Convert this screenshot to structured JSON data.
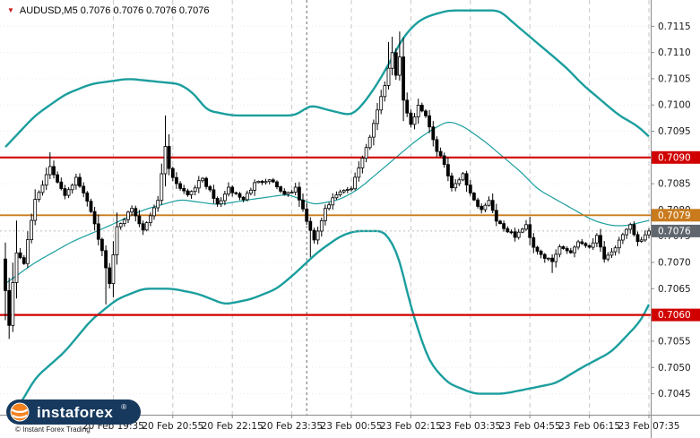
{
  "header": {
    "marker": "▼",
    "title": "AUDUSD,M5 0.7076 0.7076 0.7076 0.7076"
  },
  "watermark": {
    "brand": "instaforex",
    "reg": "®",
    "copyright": "© Instant Forex Trading"
  },
  "chart_data": {
    "type": "candlestick",
    "symbol": "AUDUSD",
    "timeframe": "M5",
    "indicators": [
      "Bollinger Bands"
    ],
    "ylim": [
      0.7041,
      0.712
    ],
    "num_candles": 174,
    "bull_color": "#ffffff",
    "bear_color": "#000000",
    "band_color": "#1b9e9e",
    "session_break_index": 81,
    "y_ticks": [
      "0.7115",
      "0.7110",
      "0.7105",
      "0.7100",
      "0.7095",
      "0.7090",
      "0.7085",
      "0.7080",
      "0.7075",
      "0.7070",
      "0.7065",
      "0.7060",
      "0.7055",
      "0.7050",
      "0.7045"
    ],
    "x_ticks": [
      {
        "i": 29,
        "label": "20 Feb 19:35"
      },
      {
        "i": 45,
        "label": "20 Feb 20:55"
      },
      {
        "i": 61,
        "label": "20 Feb 22:15"
      },
      {
        "i": 77,
        "label": "20 Feb 23:35"
      },
      {
        "i": 93,
        "label": "23 Feb 00:55"
      },
      {
        "i": 109,
        "label": "23 Feb 02:15"
      },
      {
        "i": 125,
        "label": "23 Feb 03:35"
      },
      {
        "i": 141,
        "label": "23 Feb 04:55"
      },
      {
        "i": 157,
        "label": "23 Feb 06:15"
      },
      {
        "i": 173,
        "label": "23 Feb 07:35"
      }
    ],
    "h_lines": [
      {
        "price": 0.709,
        "label": "0.7090",
        "color": "#d10000",
        "width": 2.2
      },
      {
        "price": 0.7079,
        "label": "0.7079",
        "color": "#c97a1c",
        "width": 1.8
      },
      {
        "price": 0.706,
        "label": "0.7060",
        "color": "#d10000",
        "width": 2.2
      }
    ],
    "current": {
      "price": 0.7076,
      "label": "0.7076",
      "badge_color": "#60666e"
    },
    "close_anchors": [
      [
        0,
        0.7065
      ],
      [
        1,
        0.7058
      ],
      [
        2,
        0.7066
      ],
      [
        3,
        0.7072
      ],
      [
        5,
        0.707
      ],
      [
        8,
        0.7082
      ],
      [
        12,
        0.7088
      ],
      [
        16,
        0.7083
      ],
      [
        19,
        0.7086
      ],
      [
        23,
        0.708
      ],
      [
        26,
        0.7072
      ],
      [
        28,
        0.7066
      ],
      [
        30,
        0.7077
      ],
      [
        34,
        0.708
      ],
      [
        37,
        0.7076
      ],
      [
        41,
        0.7082
      ],
      [
        43,
        0.7092
      ],
      [
        44,
        0.7088
      ],
      [
        46,
        0.7085
      ],
      [
        49,
        0.7083
      ],
      [
        53,
        0.7086
      ],
      [
        57,
        0.7081
      ],
      [
        60,
        0.7084
      ],
      [
        64,
        0.7082
      ],
      [
        67,
        0.7085
      ],
      [
        71,
        0.7086
      ],
      [
        75,
        0.7083
      ],
      [
        78,
        0.7084
      ],
      [
        81,
        0.7078
      ],
      [
        83,
        0.7074
      ],
      [
        86,
        0.708
      ],
      [
        89,
        0.7083
      ],
      [
        93,
        0.7084
      ],
      [
        95,
        0.7088
      ],
      [
        98,
        0.7094
      ],
      [
        100,
        0.7099
      ],
      [
        102,
        0.7104
      ],
      [
        104,
        0.711
      ],
      [
        105,
        0.7106
      ],
      [
        106,
        0.7109
      ],
      [
        107,
        0.7101
      ],
      [
        109,
        0.7096
      ],
      [
        111,
        0.71
      ],
      [
        113,
        0.7098
      ],
      [
        114,
        0.7096
      ],
      [
        116,
        0.7091
      ],
      [
        118,
        0.7089
      ],
      [
        120,
        0.7084
      ],
      [
        123,
        0.7087
      ],
      [
        125,
        0.7083
      ],
      [
        128,
        0.708
      ],
      [
        130,
        0.7082
      ],
      [
        132,
        0.7078
      ],
      [
        135,
        0.7076
      ],
      [
        137,
        0.7075
      ],
      [
        140,
        0.7077
      ],
      [
        142,
        0.7073
      ],
      [
        145,
        0.7071
      ],
      [
        147,
        0.707
      ],
      [
        149,
        0.7073
      ],
      [
        152,
        0.7072
      ],
      [
        154,
        0.7074
      ],
      [
        157,
        0.7073
      ],
      [
        159,
        0.7075
      ],
      [
        161,
        0.7071
      ],
      [
        163,
        0.7072
      ],
      [
        166,
        0.7075
      ],
      [
        168,
        0.7077
      ],
      [
        170,
        0.7074
      ],
      [
        172,
        0.7075
      ],
      [
        173,
        0.7076
      ]
    ],
    "extremes": [
      {
        "i": 0,
        "low": 0.7059
      },
      {
        "i": 1,
        "low": 0.7056
      },
      {
        "i": 3,
        "high": 0.7078
      },
      {
        "i": 12,
        "high": 0.7091
      },
      {
        "i": 27,
        "low": 0.7062
      },
      {
        "i": 43,
        "high": 0.7098
      },
      {
        "i": 82,
        "low": 0.7071
      },
      {
        "i": 103,
        "high": 0.7112
      },
      {
        "i": 104,
        "high": 0.7113
      },
      {
        "i": 106,
        "high": 0.7114
      },
      {
        "i": 147,
        "low": 0.7068
      }
    ],
    "bollinger": {
      "upper": [
        [
          0,
          0.7092
        ],
        [
          8,
          0.7098
        ],
        [
          16,
          0.7102
        ],
        [
          23,
          0.7104
        ],
        [
          33,
          0.7105
        ],
        [
          47,
          0.7104
        ],
        [
          51,
          0.7102
        ],
        [
          54,
          0.7099
        ],
        [
          61,
          0.7098
        ],
        [
          71,
          0.7098
        ],
        [
          78,
          0.7098
        ],
        [
          82,
          0.71
        ],
        [
          87,
          0.7099
        ],
        [
          93,
          0.7098
        ],
        [
          96,
          0.71
        ],
        [
          100,
          0.7104
        ],
        [
          104,
          0.7109
        ],
        [
          107,
          0.7113
        ],
        [
          111,
          0.7116
        ],
        [
          114,
          0.7117
        ],
        [
          119,
          0.7118
        ],
        [
          133,
          0.7118
        ],
        [
          136,
          0.7116
        ],
        [
          141,
          0.7113
        ],
        [
          146,
          0.711
        ],
        [
          151,
          0.7107
        ],
        [
          155,
          0.7104
        ],
        [
          160,
          0.7101
        ],
        [
          165,
          0.7098
        ],
        [
          170,
          0.7096
        ],
        [
          173,
          0.7094
        ]
      ],
      "middle": [
        [
          0,
          0.7066
        ],
        [
          8,
          0.707
        ],
        [
          18,
          0.7074
        ],
        [
          28,
          0.7077
        ],
        [
          37,
          0.708
        ],
        [
          47,
          0.7082
        ],
        [
          57,
          0.7081
        ],
        [
          66,
          0.7082
        ],
        [
          76,
          0.7083
        ],
        [
          83,
          0.7081
        ],
        [
          90,
          0.7082
        ],
        [
          95,
          0.7084
        ],
        [
          100,
          0.7087
        ],
        [
          105,
          0.709
        ],
        [
          110,
          0.7093
        ],
        [
          114,
          0.7095
        ],
        [
          119,
          0.7097
        ],
        [
          123,
          0.7096
        ],
        [
          129,
          0.7093
        ],
        [
          134,
          0.709
        ],
        [
          139,
          0.7087
        ],
        [
          143,
          0.7084
        ],
        [
          148,
          0.7082
        ],
        [
          153,
          0.708
        ],
        [
          158,
          0.7078
        ],
        [
          163,
          0.7077
        ],
        [
          167,
          0.7077
        ],
        [
          173,
          0.7078
        ]
      ],
      "lower": [
        [
          0,
          0.704
        ],
        [
          4,
          0.7043
        ],
        [
          8,
          0.7048
        ],
        [
          16,
          0.7053
        ],
        [
          23,
          0.7059
        ],
        [
          30,
          0.7063
        ],
        [
          37,
          0.7065
        ],
        [
          45,
          0.7065
        ],
        [
          52,
          0.7064
        ],
        [
          59,
          0.7062
        ],
        [
          66,
          0.7063
        ],
        [
          73,
          0.7065
        ],
        [
          78,
          0.7068
        ],
        [
          84,
          0.7072
        ],
        [
          90,
          0.7075
        ],
        [
          94,
          0.7076
        ],
        [
          102,
          0.7076
        ],
        [
          106,
          0.7071
        ],
        [
          108,
          0.7064
        ],
        [
          111,
          0.7057
        ],
        [
          114,
          0.7051
        ],
        [
          119,
          0.7047
        ],
        [
          126,
          0.7045
        ],
        [
          134,
          0.7045
        ],
        [
          141,
          0.7046
        ],
        [
          148,
          0.7047
        ],
        [
          155,
          0.705
        ],
        [
          163,
          0.7053
        ],
        [
          167,
          0.7056
        ],
        [
          171,
          0.7059
        ],
        [
          173,
          0.7062
        ]
      ]
    }
  }
}
